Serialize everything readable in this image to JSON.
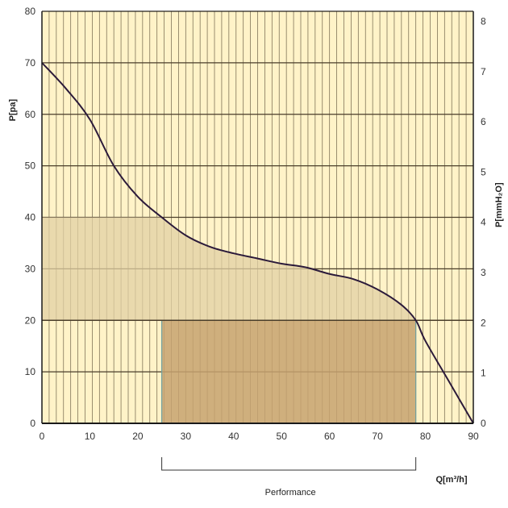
{
  "chart_data": {
    "type": "line",
    "title": "",
    "xlabel": "Q[m³/h]",
    "ylabel_left": "P[pa]",
    "ylabel_right": "P[mmH₂O]",
    "xlim": [
      0,
      90
    ],
    "ylim_left": [
      0,
      80
    ],
    "ylim_right": [
      0,
      8.2
    ],
    "x_ticks": [
      "0",
      "10",
      "20",
      "30",
      "40",
      "50",
      "60",
      "70",
      "80",
      "90"
    ],
    "y_ticks_left": [
      "0",
      "10",
      "20",
      "30",
      "40",
      "50",
      "60",
      "70",
      "80"
    ],
    "y_ticks_right": [
      "0",
      "1",
      "2",
      "3",
      "4",
      "5",
      "6",
      "7",
      "8"
    ],
    "grid": true,
    "series": [
      {
        "x": [
          0,
          5,
          10,
          15,
          20,
          25,
          30,
          35,
          40,
          45,
          50,
          55,
          60,
          65,
          70,
          75,
          78,
          80,
          85,
          90
        ],
        "y": [
          70,
          65,
          59,
          50,
          44,
          40,
          36.5,
          34.3,
          33,
          32,
          31,
          30.3,
          29,
          28,
          26,
          23,
          20,
          16,
          8,
          0
        ]
      }
    ],
    "shaded_regions": [
      {
        "x": [
          0,
          25
        ],
        "y": [
          20,
          40
        ]
      },
      {
        "x": [
          25,
          78
        ],
        "y": [
          0,
          20
        ]
      }
    ],
    "performance_range": [
      25,
      78
    ],
    "performance_label": "Performance",
    "colors": {
      "background": "#fff3c8",
      "grid": "#4a3e2a",
      "curve": "#2b1a3a",
      "band": "#e2d0a4",
      "box": "#c7a270",
      "box_edge": "#6fa0a0"
    }
  }
}
